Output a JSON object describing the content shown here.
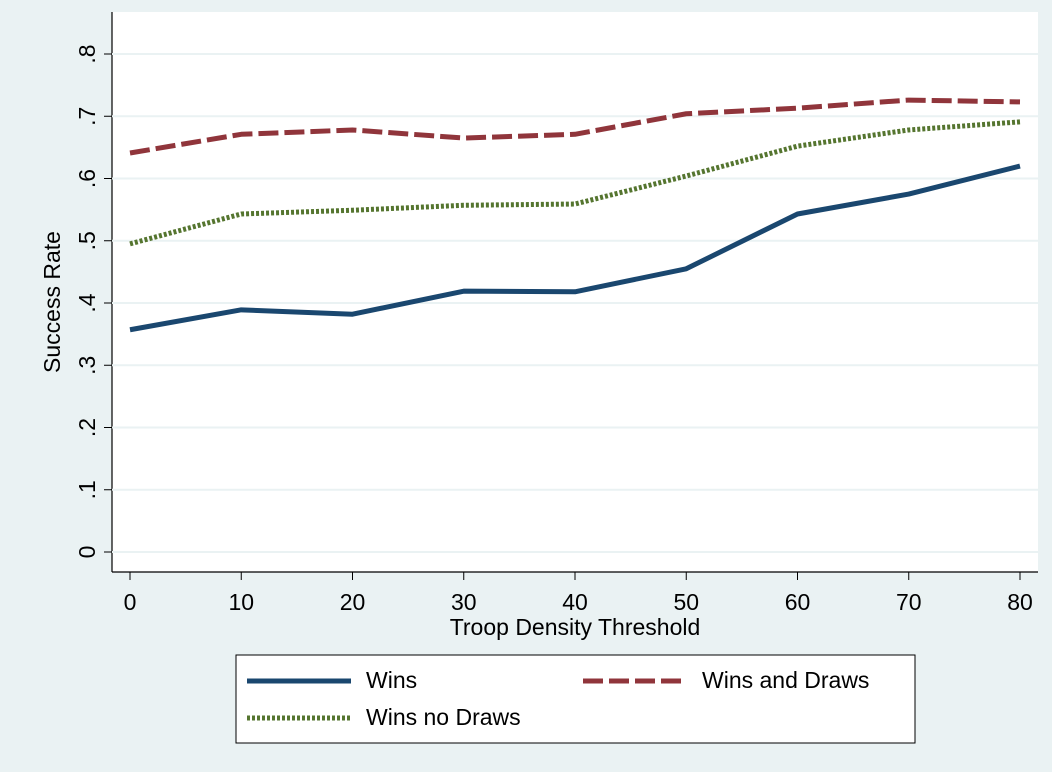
{
  "chart_data": {
    "type": "line",
    "x_label": "Troop Density Threshold",
    "y_label": "Success Rate",
    "x": [
      0,
      10,
      20,
      30,
      40,
      50,
      60,
      70,
      80
    ],
    "xlim": [
      0,
      80
    ],
    "xticks": [
      0,
      10,
      20,
      30,
      40,
      50,
      60,
      70,
      80
    ],
    "ylim": [
      0,
      0.8
    ],
    "yticks": [
      0,
      {
        "value": 0.1,
        "label": ".1"
      },
      {
        "value": 0.2,
        "label": ".2"
      },
      {
        "value": 0.3,
        "label": ".3"
      },
      {
        "value": 0.4,
        "label": ".4"
      },
      {
        "value": 0.5,
        "label": ".5"
      },
      {
        "value": 0.6,
        "label": ".6"
      },
      {
        "value": 0.7,
        "label": ".7"
      },
      {
        "value": 0.8,
        "label": ".8"
      }
    ],
    "grid": true,
    "legend": "bottom",
    "series": [
      {
        "name": "Wins",
        "color": "#1a476f",
        "style": "solid",
        "values": [
          0.357,
          0.389,
          0.382,
          0.419,
          0.418,
          0.455,
          0.543,
          0.575,
          0.62
        ]
      },
      {
        "name": "Wins and Draws",
        "color": "#90353b",
        "style": "dash",
        "values": [
          0.641,
          0.671,
          0.678,
          0.665,
          0.671,
          0.704,
          0.713,
          0.726,
          0.723
        ]
      },
      {
        "name": "Wins no Draws",
        "color": "#55752f",
        "style": "dot",
        "values": [
          0.495,
          0.543,
          0.549,
          0.557,
          0.559,
          0.604,
          0.652,
          0.678,
          0.691
        ]
      }
    ]
  }
}
